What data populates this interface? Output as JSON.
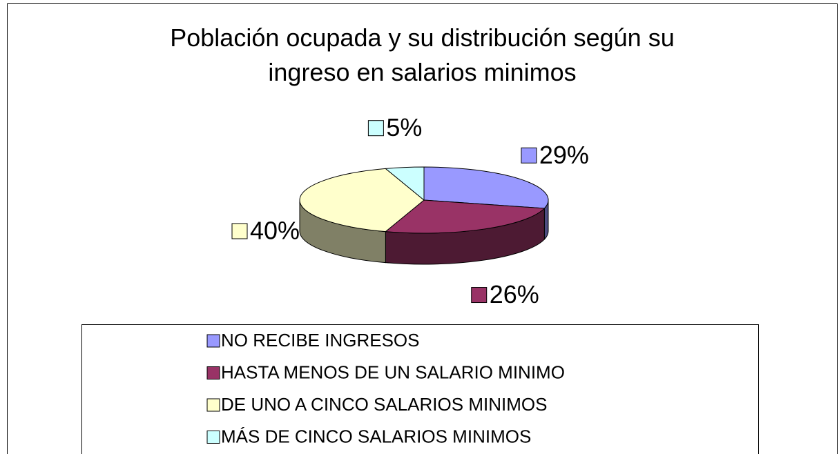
{
  "chart_data": {
    "type": "pie3d",
    "title": "Población ocupada y su distribución según su\ningreso en salarios minimos",
    "categories": [
      "NO RECIBE INGRESOS",
      "HASTA MENOS DE UN SALARIO MINIMO",
      "DE UNO A CINCO SALARIOS MINIMOS",
      "MÁS DE CINCO SALARIOS MINIMOS"
    ],
    "values": [
      29,
      26,
      40,
      5
    ],
    "value_labels": [
      "29%",
      "26%",
      "40%",
      "5%"
    ],
    "colors": [
      "#9999ff",
      "#993366",
      "#ffffcc",
      "#ccffff"
    ],
    "legend": "bottom"
  }
}
